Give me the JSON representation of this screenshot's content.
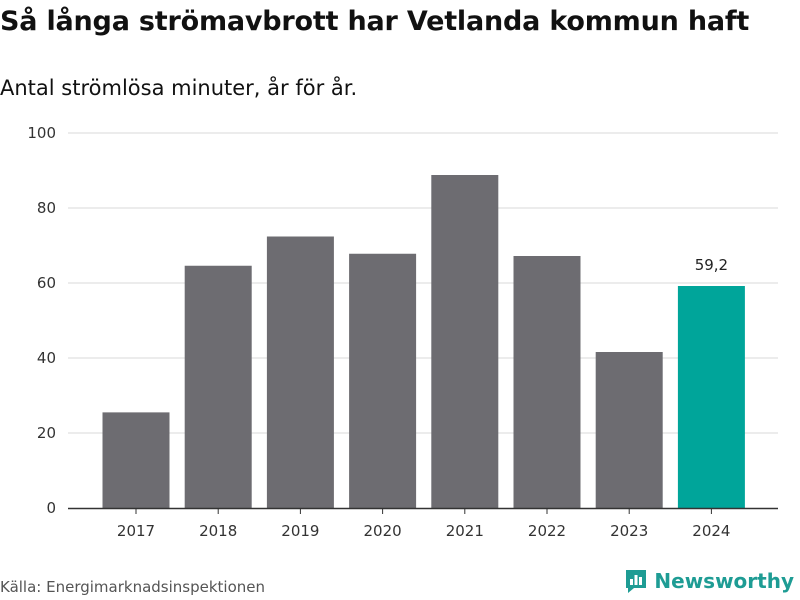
{
  "header": {
    "title": "Så långa strömavbrott har Vetlanda kommun haft",
    "subtitle": "Antal strömlösa minuter, år för år."
  },
  "footer": {
    "source": "Källa: Energimarknadsinspektionen",
    "brand": "Newsworthy"
  },
  "colors": {
    "bar": "#6d6c71",
    "highlight": "#00a59a",
    "grid": "#d9d9d9",
    "axis": "#333333",
    "brand": "#1e9c94"
  },
  "chart_data": {
    "type": "bar",
    "title": "Så långa strömavbrott har Vetlanda kommun haft",
    "subtitle": "Antal strömlösa minuter, år för år.",
    "xlabel": "",
    "ylabel": "",
    "categories": [
      "2017",
      "2018",
      "2019",
      "2020",
      "2021",
      "2022",
      "2023",
      "2024"
    ],
    "values": [
      25.5,
      64.6,
      72.4,
      67.8,
      88.8,
      67.2,
      41.6,
      59.2
    ],
    "highlight_index": 7,
    "highlight_label": "59,2",
    "ylim": [
      0,
      100
    ],
    "yticks": [
      0,
      20,
      40,
      60,
      80,
      100
    ],
    "grid": true
  }
}
